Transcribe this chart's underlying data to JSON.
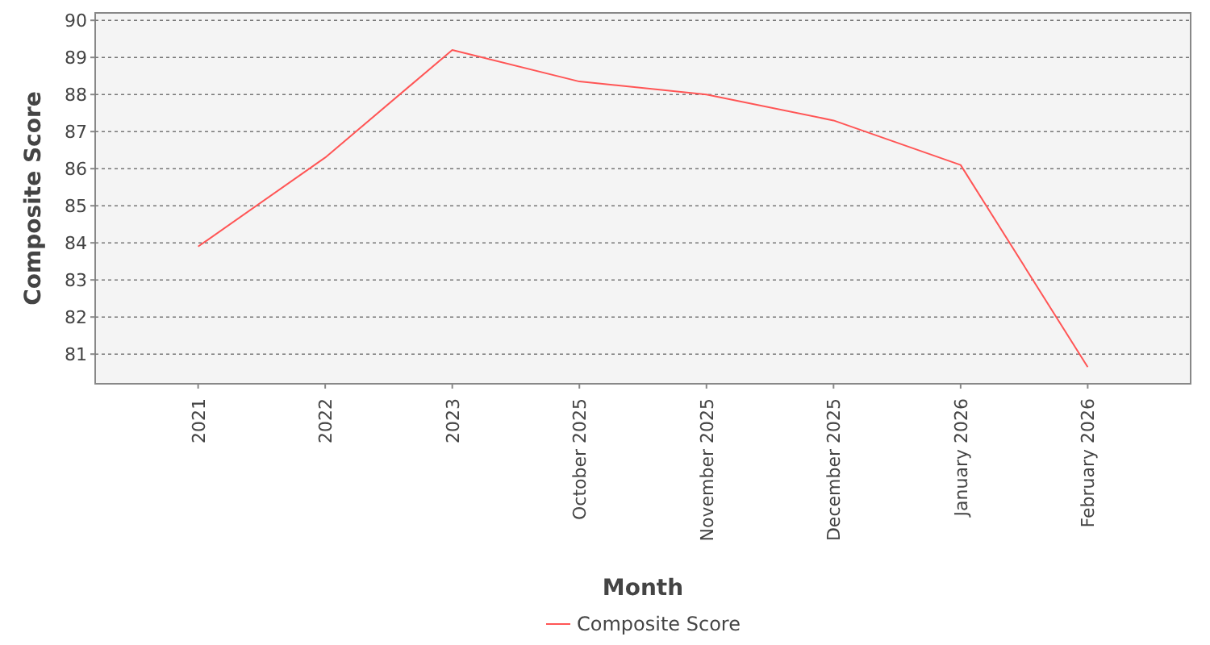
{
  "chart_data": {
    "type": "line",
    "xlabel": "Month",
    "ylabel": "Composite Score",
    "categories": [
      "2021",
      "2022",
      "2023",
      "October 2025",
      "November 2025",
      "December 2025",
      "January 2026",
      "February 2026"
    ],
    "series": [
      {
        "name": "Composite Score",
        "color": "#ff5555",
        "values": [
          83.9,
          86.3,
          89.2,
          88.35,
          88.0,
          87.3,
          86.1,
          80.65
        ]
      }
    ],
    "ylim": [
      80.2,
      90.2
    ],
    "yticks": [
      81,
      82,
      83,
      84,
      85,
      86,
      87,
      88,
      89,
      90
    ],
    "grid": "y",
    "legend": "bottom",
    "marker": "none",
    "line_style": "solid"
  }
}
